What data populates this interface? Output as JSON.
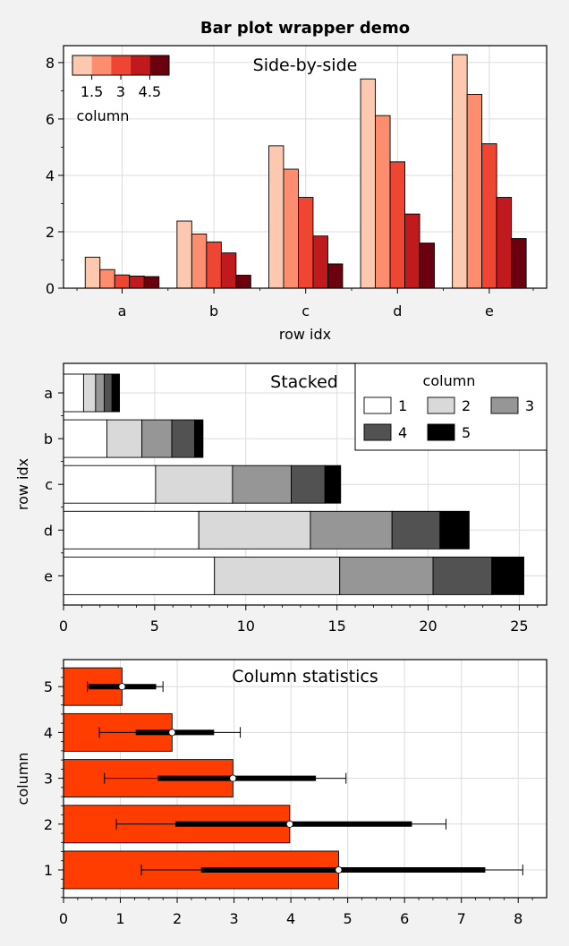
{
  "figure": {
    "title": "Bar plot wrapper demo"
  },
  "chart_data": [
    {
      "type": "bar",
      "panel_title": "Side-by-side",
      "xlabel": "row idx",
      "ylabel": "",
      "categories": [
        "a",
        "b",
        "c",
        "d",
        "e"
      ],
      "ylim": [
        0,
        8.6
      ],
      "yticks": [
        0,
        2,
        4,
        6,
        8
      ],
      "grid": true,
      "series": [
        {
          "name": "1",
          "color": "#fcc8b0",
          "values": [
            1.1,
            2.38,
            5.05,
            7.42,
            8.28
          ]
        },
        {
          "name": "2",
          "color": "#fc8d6f",
          "values": [
            0.66,
            1.92,
            4.22,
            6.12,
            6.87
          ]
        },
        {
          "name": "3",
          "color": "#ef4533",
          "values": [
            0.47,
            1.64,
            3.22,
            4.48,
            5.12
          ]
        },
        {
          "name": "4",
          "color": "#c11a1e",
          "values": [
            0.43,
            1.25,
            1.85,
            2.63,
            3.22
          ]
        },
        {
          "name": "5",
          "color": "#6b010e",
          "values": [
            0.41,
            0.46,
            0.86,
            1.6,
            1.76
          ]
        }
      ],
      "colorbar": {
        "label": "column",
        "ticks": [
          "1.5",
          "3",
          "4.5"
        ],
        "location": "top-left"
      }
    },
    {
      "type": "bar",
      "orientation": "horizontal",
      "stacked": true,
      "panel_title": "Stacked",
      "ylabel": "row idx",
      "xlabel": "",
      "categories": [
        "a",
        "b",
        "c",
        "d",
        "e"
      ],
      "xlim": [
        0,
        26.5
      ],
      "xticks": [
        0,
        5,
        10,
        15,
        20,
        25
      ],
      "grid": true,
      "series": [
        {
          "name": "1",
          "color": "#ffffff",
          "values": [
            1.1,
            2.38,
            5.05,
            7.42,
            8.28
          ]
        },
        {
          "name": "2",
          "color": "#d9d9d9",
          "values": [
            0.66,
            1.92,
            4.22,
            6.12,
            6.87
          ]
        },
        {
          "name": "3",
          "color": "#969696",
          "values": [
            0.47,
            1.64,
            3.22,
            4.48,
            5.12
          ]
        },
        {
          "name": "4",
          "color": "#525252",
          "values": [
            0.43,
            1.25,
            1.85,
            2.63,
            3.22
          ]
        },
        {
          "name": "5",
          "color": "#000000",
          "values": [
            0.41,
            0.46,
            0.86,
            1.6,
            1.76
          ]
        }
      ],
      "legend": {
        "title": "column",
        "location": "top-right",
        "entries": [
          "1",
          "2",
          "3",
          "4",
          "5"
        ]
      }
    },
    {
      "type": "bar",
      "orientation": "horizontal",
      "panel_title": "Column statistics",
      "ylabel": "column",
      "xlabel": "",
      "categories": [
        "1",
        "2",
        "3",
        "4",
        "5"
      ],
      "xlim": [
        0,
        8.5
      ],
      "xticks": [
        0,
        1,
        2,
        3,
        4,
        5,
        6,
        7,
        8
      ],
      "bar_color": "#ff3d00",
      "grid": true,
      "stats": [
        {
          "column": "1",
          "mean": 4.84,
          "median": 4.84,
          "box": [
            2.42,
            7.42
          ],
          "whiskers": [
            1.37,
            8.08
          ]
        },
        {
          "column": "2",
          "mean": 3.98,
          "median": 3.98,
          "box": [
            1.97,
            6.13
          ],
          "whiskers": [
            0.93,
            6.73
          ]
        },
        {
          "column": "3",
          "mean": 2.98,
          "median": 2.98,
          "box": [
            1.66,
            4.44
          ],
          "whiskers": [
            0.72,
            4.97
          ]
        },
        {
          "column": "4",
          "mean": 1.91,
          "median": 1.91,
          "box": [
            1.27,
            2.65
          ],
          "whiskers": [
            0.63,
            3.11
          ]
        },
        {
          "column": "5",
          "mean": 1.03,
          "median": 1.03,
          "box": [
            0.44,
            1.63
          ],
          "whiskers": [
            0.42,
            1.75
          ]
        }
      ]
    }
  ]
}
